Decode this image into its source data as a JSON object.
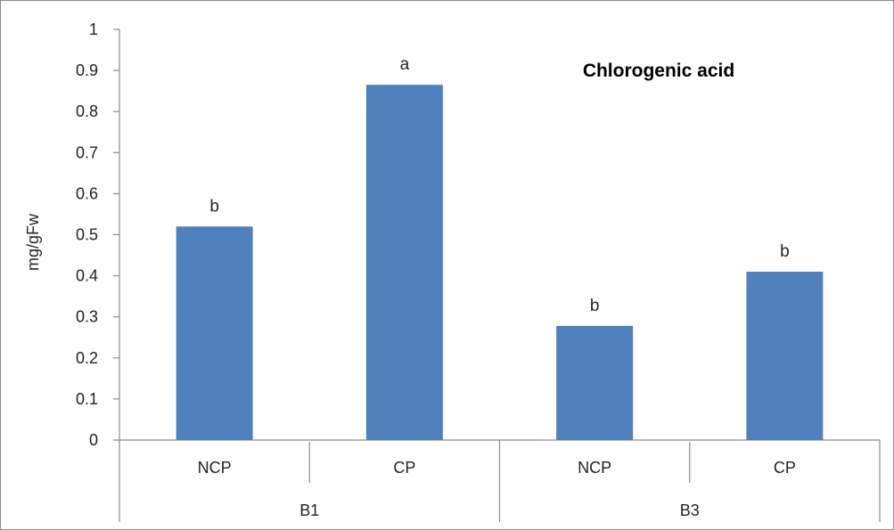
{
  "chart_data": {
    "type": "bar",
    "title": "Chlorogenic acid",
    "ylabel": "mg/gFw",
    "xlabel": "",
    "ylim": [
      0,
      1
    ],
    "yticks": [
      "0",
      "0.1",
      "0.2",
      "0.3",
      "0.4",
      "0.5",
      "0.6",
      "0.7",
      "0.8",
      "0.9",
      "1"
    ],
    "grid": false,
    "groups": [
      {
        "name": "B1",
        "categories": [
          "NCP",
          "CP"
        ]
      },
      {
        "name": "B3",
        "categories": [
          "NCP",
          "CP"
        ]
      }
    ],
    "categories": [
      "NCP",
      "CP",
      "NCP",
      "CP"
    ],
    "values": [
      0.52,
      0.865,
      0.278,
      0.41
    ],
    "data_labels": [
      "b",
      "a",
      "b",
      "b"
    ],
    "colors": {
      "bar": "#4f81bd",
      "axis": "#8c8c8c",
      "text": "#222222"
    }
  }
}
